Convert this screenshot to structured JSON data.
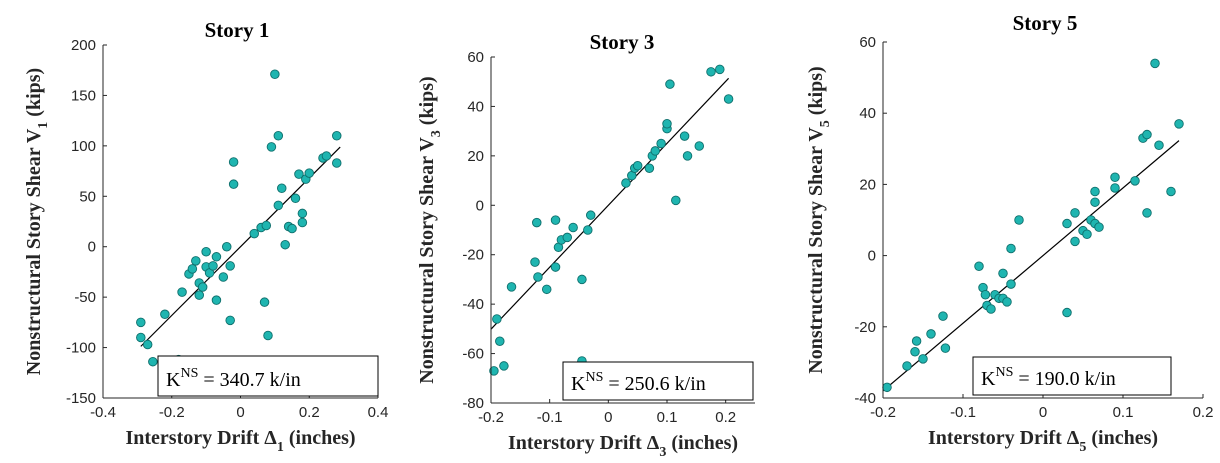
{
  "chart_data": [
    {
      "type": "scatter",
      "title": "Story 1",
      "xlabel": {
        "text": "Interstory Drift Δ",
        "sub": "1",
        "suffix": " (inches)"
      },
      "ylabel": {
        "text": "Nonstructural Story Shear V",
        "sub": "1",
        "suffix": " (kips)"
      },
      "xlim": [
        -0.4,
        0.4
      ],
      "ylim": [
        -150,
        200
      ],
      "xticks": [
        -0.4,
        -0.2,
        0,
        0.2,
        0.4
      ],
      "xtick_labels": [
        "-0.4",
        "-0.2",
        "0",
        "0.2",
        "0.4"
      ],
      "yticks": [
        -150,
        -100,
        -50,
        0,
        50,
        100,
        150,
        200
      ],
      "ytick_labels": [
        "-150",
        "-100",
        "-50",
        "0",
        "50",
        "100",
        "150",
        "200"
      ],
      "annotation": {
        "k": "K",
        "sup": "NS",
        "value": " = 340.7 k/in"
      },
      "fit_slope": 340.7,
      "fit_x": [
        -0.29,
        0.29
      ],
      "marker_color": "#1fb5b0",
      "points": [
        {
          "x": -0.29,
          "y": -75
        },
        {
          "x": -0.29,
          "y": -90
        },
        {
          "x": -0.27,
          "y": -97
        },
        {
          "x": -0.255,
          "y": -114
        },
        {
          "x": -0.22,
          "y": -67
        },
        {
          "x": -0.18,
          "y": -112
        },
        {
          "x": -0.17,
          "y": -45
        },
        {
          "x": -0.15,
          "y": -27
        },
        {
          "x": -0.14,
          "y": -22
        },
        {
          "x": -0.13,
          "y": -14
        },
        {
          "x": -0.12,
          "y": -48
        },
        {
          "x": -0.12,
          "y": -36
        },
        {
          "x": -0.11,
          "y": -40
        },
        {
          "x": -0.1,
          "y": -5
        },
        {
          "x": -0.1,
          "y": -20
        },
        {
          "x": -0.09,
          "y": -26
        },
        {
          "x": -0.08,
          "y": -19
        },
        {
          "x": -0.07,
          "y": -53
        },
        {
          "x": -0.07,
          "y": -10
        },
        {
          "x": -0.05,
          "y": -30
        },
        {
          "x": -0.04,
          "y": 0
        },
        {
          "x": -0.03,
          "y": -73
        },
        {
          "x": -0.03,
          "y": -19
        },
        {
          "x": -0.02,
          "y": 84
        },
        {
          "x": -0.02,
          "y": 62
        },
        {
          "x": 0.04,
          "y": 13
        },
        {
          "x": 0.06,
          "y": 19
        },
        {
          "x": 0.07,
          "y": -55
        },
        {
          "x": 0.08,
          "y": -88
        },
        {
          "x": 0.075,
          "y": 21
        },
        {
          "x": 0.09,
          "y": 99
        },
        {
          "x": 0.1,
          "y": 171
        },
        {
          "x": 0.11,
          "y": 110
        },
        {
          "x": 0.11,
          "y": 41
        },
        {
          "x": 0.12,
          "y": 58
        },
        {
          "x": 0.13,
          "y": 2
        },
        {
          "x": 0.14,
          "y": 20
        },
        {
          "x": 0.15,
          "y": 18
        },
        {
          "x": 0.16,
          "y": 48
        },
        {
          "x": 0.17,
          "y": 72
        },
        {
          "x": 0.18,
          "y": 33
        },
        {
          "x": 0.18,
          "y": 24
        },
        {
          "x": 0.19,
          "y": 67
        },
        {
          "x": 0.2,
          "y": 73
        },
        {
          "x": 0.24,
          "y": 88
        },
        {
          "x": 0.25,
          "y": 90
        },
        {
          "x": 0.28,
          "y": 110
        },
        {
          "x": 0.28,
          "y": 83
        }
      ]
    },
    {
      "type": "scatter",
      "title": "Story 3",
      "xlabel": {
        "text": "Interstory Drift Δ",
        "sub": "3",
        "suffix": " (inches)"
      },
      "ylabel": {
        "text": "Nonstructural Story Shear V",
        "sub": "3",
        "suffix": " (kips)"
      },
      "xlim": [
        -0.2,
        0.25
      ],
      "ylim": [
        -80,
        60
      ],
      "xticks": [
        -0.2,
        -0.1,
        0,
        0.1,
        0.2
      ],
      "xtick_labels": [
        "-0.2",
        "-0.1",
        "0",
        "0.1",
        "0.2"
      ],
      "yticks": [
        -80,
        -60,
        -40,
        -20,
        0,
        20,
        40,
        60
      ],
      "ytick_labels": [
        "-80",
        "-60",
        "-40",
        "-20",
        "0",
        "20",
        "40",
        "60"
      ],
      "annotation": {
        "k": "K",
        "sup": "NS",
        "value": " = 250.6 k/in"
      },
      "fit_slope": 250.6,
      "fit_x": [
        -0.2,
        0.205
      ],
      "marker_color": "#1fb5b0",
      "points": [
        {
          "x": -0.195,
          "y": -67
        },
        {
          "x": -0.19,
          "y": -46
        },
        {
          "x": -0.185,
          "y": -55
        },
        {
          "x": -0.178,
          "y": -65
        },
        {
          "x": -0.165,
          "y": -33
        },
        {
          "x": -0.125,
          "y": -23
        },
        {
          "x": -0.122,
          "y": -7
        },
        {
          "x": -0.12,
          "y": -29
        },
        {
          "x": -0.105,
          "y": -34
        },
        {
          "x": -0.09,
          "y": -25
        },
        {
          "x": -0.09,
          "y": -6
        },
        {
          "x": -0.085,
          "y": -17
        },
        {
          "x": -0.08,
          "y": -14
        },
        {
          "x": -0.07,
          "y": -13
        },
        {
          "x": -0.06,
          "y": -9
        },
        {
          "x": -0.045,
          "y": -30
        },
        {
          "x": -0.045,
          "y": -63
        },
        {
          "x": -0.035,
          "y": -10
        },
        {
          "x": -0.03,
          "y": -4
        },
        {
          "x": 0.03,
          "y": 9
        },
        {
          "x": 0.04,
          "y": 12
        },
        {
          "x": 0.045,
          "y": 15
        },
        {
          "x": 0.05,
          "y": 16
        },
        {
          "x": 0.07,
          "y": 15
        },
        {
          "x": 0.075,
          "y": 20
        },
        {
          "x": 0.08,
          "y": 22
        },
        {
          "x": 0.09,
          "y": 25
        },
        {
          "x": 0.1,
          "y": 31
        },
        {
          "x": 0.1,
          "y": 33
        },
        {
          "x": 0.105,
          "y": 49
        },
        {
          "x": 0.115,
          "y": 2
        },
        {
          "x": 0.13,
          "y": 28
        },
        {
          "x": 0.135,
          "y": 20
        },
        {
          "x": 0.155,
          "y": 24
        },
        {
          "x": 0.175,
          "y": 54
        },
        {
          "x": 0.19,
          "y": 55
        },
        {
          "x": 0.205,
          "y": 43
        }
      ]
    },
    {
      "type": "scatter",
      "title": "Story 5",
      "xlabel": {
        "text": "Interstory Drift Δ",
        "sub": "5",
        "suffix": " (inches)"
      },
      "ylabel": {
        "text": "Nonstructural Story Shear V",
        "sub": "5",
        "suffix": " (kips)"
      },
      "xlim": [
        -0.2,
        0.2
      ],
      "ylim": [
        -40,
        60
      ],
      "xticks": [
        -0.2,
        -0.1,
        0,
        0.1,
        0.2
      ],
      "xtick_labels": [
        "-0.2",
        "-0.1",
        "0",
        "0.1",
        "0.2"
      ],
      "yticks": [
        -40,
        -20,
        0,
        20,
        40,
        60
      ],
      "ytick_labels": [
        "-40",
        "-20",
        "0",
        "20",
        "40",
        "60"
      ],
      "annotation": {
        "k": "K",
        "sup": "NS",
        "value": " = 190.0 k/in"
      },
      "fit_slope": 190.0,
      "fit_x": [
        -0.2,
        0.17
      ],
      "marker_color": "#1fb5b0",
      "points": [
        {
          "x": -0.195,
          "y": -37
        },
        {
          "x": -0.17,
          "y": -31
        },
        {
          "x": -0.16,
          "y": -27
        },
        {
          "x": -0.158,
          "y": -24
        },
        {
          "x": -0.15,
          "y": -29
        },
        {
          "x": -0.14,
          "y": -22
        },
        {
          "x": -0.125,
          "y": -17
        },
        {
          "x": -0.122,
          "y": -26
        },
        {
          "x": -0.08,
          "y": -3
        },
        {
          "x": -0.075,
          "y": -9
        },
        {
          "x": -0.072,
          "y": -11
        },
        {
          "x": -0.07,
          "y": -14
        },
        {
          "x": -0.065,
          "y": -15
        },
        {
          "x": -0.06,
          "y": -11
        },
        {
          "x": -0.055,
          "y": -12
        },
        {
          "x": -0.05,
          "y": -5
        },
        {
          "x": -0.05,
          "y": -12
        },
        {
          "x": -0.045,
          "y": -13
        },
        {
          "x": -0.04,
          "y": 2
        },
        {
          "x": -0.04,
          "y": -8
        },
        {
          "x": -0.03,
          "y": 10
        },
        {
          "x": 0.03,
          "y": -16
        },
        {
          "x": 0.03,
          "y": 9
        },
        {
          "x": 0.04,
          "y": 4
        },
        {
          "x": 0.04,
          "y": 12
        },
        {
          "x": 0.05,
          "y": 7
        },
        {
          "x": 0.055,
          "y": 6
        },
        {
          "x": 0.06,
          "y": 10
        },
        {
          "x": 0.065,
          "y": 18
        },
        {
          "x": 0.065,
          "y": 15
        },
        {
          "x": 0.065,
          "y": 9
        },
        {
          "x": 0.07,
          "y": 8
        },
        {
          "x": 0.09,
          "y": 22
        },
        {
          "x": 0.09,
          "y": 19
        },
        {
          "x": 0.115,
          "y": 21
        },
        {
          "x": 0.125,
          "y": 33
        },
        {
          "x": 0.13,
          "y": 34
        },
        {
          "x": 0.13,
          "y": 12
        },
        {
          "x": 0.14,
          "y": 54
        },
        {
          "x": 0.145,
          "y": 31
        },
        {
          "x": 0.16,
          "y": 18
        },
        {
          "x": 0.17,
          "y": 37
        }
      ]
    }
  ]
}
